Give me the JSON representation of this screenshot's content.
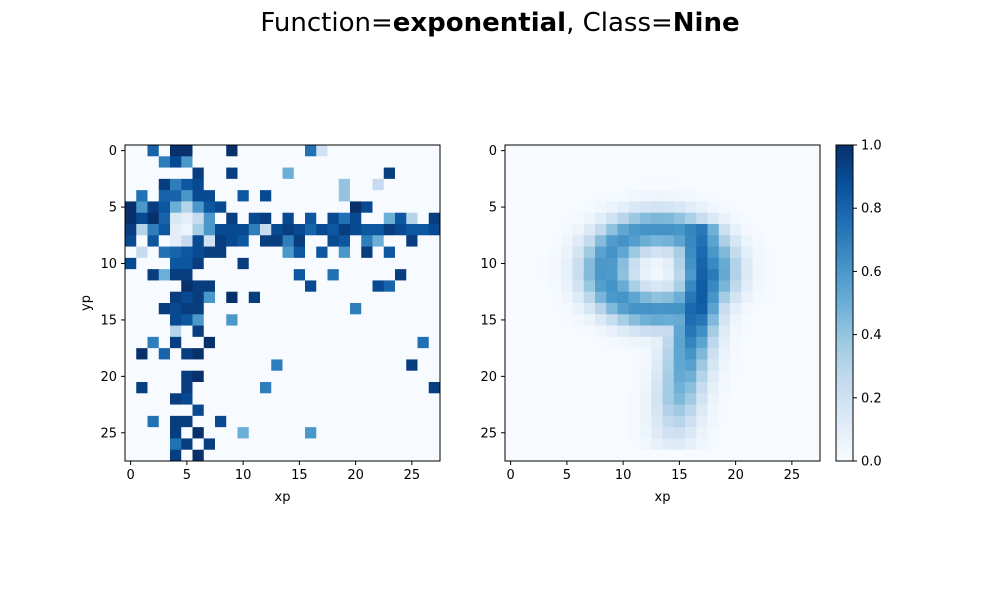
{
  "title": {
    "prefix": "Function=",
    "function": "exponential",
    "middle": ", Class=",
    "class": "Nine"
  },
  "chart_data": [
    {
      "type": "heatmap",
      "name": "attribution",
      "xlabel": "xp",
      "ylabel": "yp",
      "size": 28,
      "xticks": [
        0,
        5,
        10,
        15,
        20,
        25
      ],
      "yticks": [
        0,
        5,
        10,
        15,
        20,
        25
      ],
      "vmin": 0,
      "vmax": 1,
      "colormap": "Blues",
      "pixels": [
        [
          0,
          2,
          0.8
        ],
        [
          0,
          4,
          1
        ],
        [
          0,
          5,
          1
        ],
        [
          0,
          9,
          1
        ],
        [
          0,
          16,
          0.75
        ],
        [
          0,
          17,
          0.2
        ],
        [
          1,
          3,
          0.7
        ],
        [
          1,
          4,
          0.9
        ],
        [
          1,
          5,
          0.6
        ],
        [
          2,
          6,
          0.95
        ],
        [
          2,
          9,
          0.95
        ],
        [
          2,
          14,
          0.5
        ],
        [
          2,
          23,
          0.95
        ],
        [
          3,
          3,
          0.95
        ],
        [
          3,
          4,
          0.7
        ],
        [
          3,
          5,
          0.85
        ],
        [
          3,
          6,
          0.9
        ],
        [
          3,
          19,
          0.4
        ],
        [
          3,
          22,
          0.25
        ],
        [
          4,
          1,
          0.75
        ],
        [
          4,
          3,
          0.8
        ],
        [
          4,
          4,
          0.8
        ],
        [
          4,
          5,
          0.6
        ],
        [
          4,
          6,
          0.9
        ],
        [
          4,
          7,
          0.9
        ],
        [
          4,
          10,
          0.85
        ],
        [
          4,
          12,
          0.9
        ],
        [
          4,
          19,
          0.4
        ],
        [
          5,
          0,
          1
        ],
        [
          5,
          1,
          0.6
        ],
        [
          5,
          2,
          0.95
        ],
        [
          5,
          3,
          0.85
        ],
        [
          5,
          4,
          0.5
        ],
        [
          5,
          5,
          0.3
        ],
        [
          5,
          6,
          0.6
        ],
        [
          5,
          7,
          0.85
        ],
        [
          5,
          8,
          0.9
        ],
        [
          5,
          20,
          1
        ],
        [
          5,
          21,
          0.9
        ],
        [
          6,
          0,
          1
        ],
        [
          6,
          1,
          0.9
        ],
        [
          6,
          2,
          1
        ],
        [
          6,
          3,
          0.8
        ],
        [
          6,
          4,
          0.15
        ],
        [
          6,
          5,
          0.1
        ],
        [
          6,
          6,
          0.25
        ],
        [
          6,
          7,
          0.6
        ],
        [
          6,
          9,
          0.95
        ],
        [
          6,
          11,
          0.9
        ],
        [
          6,
          12,
          0.95
        ],
        [
          6,
          14,
          0.9
        ],
        [
          6,
          16,
          0.85
        ],
        [
          6,
          18,
          0.9
        ],
        [
          6,
          19,
          0.75
        ],
        [
          6,
          20,
          0.9
        ],
        [
          6,
          23,
          0.5
        ],
        [
          6,
          24,
          0.85
        ],
        [
          6,
          25,
          0.3
        ],
        [
          6,
          27,
          0.95
        ],
        [
          7,
          0,
          0.95
        ],
        [
          7,
          1,
          0.3
        ],
        [
          7,
          2,
          0.7
        ],
        [
          7,
          3,
          0.85
        ],
        [
          7,
          4,
          0.1
        ],
        [
          7,
          5,
          0.05
        ],
        [
          7,
          6,
          0.35
        ],
        [
          7,
          7,
          0.6
        ],
        [
          7,
          8,
          0.9
        ],
        [
          7,
          9,
          0.9
        ],
        [
          7,
          10,
          0.9
        ],
        [
          7,
          11,
          0.7
        ],
        [
          7,
          12,
          0.25
        ],
        [
          7,
          13,
          0.9
        ],
        [
          7,
          14,
          0.95
        ],
        [
          7,
          15,
          0.9
        ],
        [
          7,
          16,
          0.8
        ],
        [
          7,
          17,
          0.9
        ],
        [
          7,
          18,
          0.85
        ],
        [
          7,
          19,
          0.95
        ],
        [
          7,
          20,
          0.9
        ],
        [
          7,
          21,
          0.85
        ],
        [
          7,
          22,
          0.85
        ],
        [
          7,
          23,
          0.95
        ],
        [
          7,
          24,
          0.9
        ],
        [
          7,
          25,
          0.85
        ],
        [
          7,
          26,
          0.85
        ],
        [
          7,
          27,
          0.9
        ],
        [
          8,
          0,
          0.9
        ],
        [
          8,
          2,
          0.85
        ],
        [
          8,
          4,
          0.1
        ],
        [
          8,
          5,
          0.25
        ],
        [
          8,
          6,
          0.9
        ],
        [
          8,
          7,
          0.2
        ],
        [
          8,
          8,
          0.95
        ],
        [
          8,
          9,
          0.9
        ],
        [
          8,
          10,
          0.85
        ],
        [
          8,
          12,
          0.95
        ],
        [
          8,
          13,
          0.95
        ],
        [
          8,
          14,
          0.7
        ],
        [
          8,
          15,
          0.95
        ],
        [
          8,
          18,
          0.9
        ],
        [
          8,
          19,
          0.85
        ],
        [
          8,
          21,
          0.7
        ],
        [
          8,
          22,
          0.5
        ],
        [
          8,
          25,
          0.95
        ],
        [
          9,
          1,
          0.25
        ],
        [
          9,
          3,
          0.75
        ],
        [
          9,
          4,
          0.8
        ],
        [
          9,
          5,
          0.85
        ],
        [
          9,
          6,
          0.9
        ],
        [
          9,
          7,
          0.95
        ],
        [
          9,
          8,
          0.95
        ],
        [
          9,
          14,
          0.6
        ],
        [
          9,
          15,
          0.85
        ],
        [
          9,
          17,
          0.85
        ],
        [
          9,
          19,
          0.6
        ],
        [
          9,
          21,
          0.95
        ],
        [
          9,
          23,
          0.85
        ],
        [
          10,
          0,
          0.9
        ],
        [
          10,
          4,
          0.85
        ],
        [
          10,
          5,
          0.85
        ],
        [
          10,
          6,
          0.95
        ],
        [
          10,
          10,
          0.95
        ],
        [
          11,
          2,
          0.95
        ],
        [
          11,
          3,
          0.5
        ],
        [
          11,
          4,
          0.95
        ],
        [
          11,
          5,
          0.95
        ],
        [
          11,
          15,
          0.85
        ],
        [
          11,
          18,
          0.75
        ],
        [
          11,
          24,
          0.95
        ],
        [
          12,
          5,
          1
        ],
        [
          12,
          6,
          0.95
        ],
        [
          12,
          7,
          0.95
        ],
        [
          12,
          16,
          0.9
        ],
        [
          12,
          22,
          0.9
        ],
        [
          12,
          23,
          0.8
        ],
        [
          13,
          4,
          0.95
        ],
        [
          13,
          5,
          0.9
        ],
        [
          13,
          6,
          0.95
        ],
        [
          13,
          7,
          0.6
        ],
        [
          13,
          9,
          1
        ],
        [
          13,
          11,
          0.95
        ],
        [
          14,
          3,
          0.95
        ],
        [
          14,
          4,
          0.9
        ],
        [
          14,
          5,
          0.95
        ],
        [
          14,
          6,
          0.95
        ],
        [
          14,
          20,
          0.7
        ],
        [
          15,
          4,
          0.9
        ],
        [
          15,
          5,
          0.85
        ],
        [
          15,
          6,
          0.6
        ],
        [
          15,
          9,
          0.6
        ],
        [
          16,
          4,
          0.3
        ],
        [
          16,
          6,
          0.95
        ],
        [
          17,
          2,
          0.7
        ],
        [
          17,
          4,
          0.95
        ],
        [
          17,
          7,
          1
        ],
        [
          17,
          26,
          0.75
        ],
        [
          18,
          1,
          1
        ],
        [
          18,
          3,
          0.8
        ],
        [
          18,
          5,
          0.95
        ],
        [
          18,
          6,
          1
        ],
        [
          19,
          13,
          0.7
        ],
        [
          19,
          25,
          0.95
        ],
        [
          20,
          5,
          0.95
        ],
        [
          20,
          6,
          1
        ],
        [
          21,
          1,
          0.95
        ],
        [
          21,
          5,
          0.95
        ],
        [
          21,
          12,
          0.7
        ],
        [
          21,
          27,
          0.95
        ],
        [
          22,
          4,
          0.95
        ],
        [
          22,
          5,
          0.9
        ],
        [
          23,
          6,
          0.9
        ],
        [
          24,
          2,
          0.75
        ],
        [
          24,
          4,
          0.95
        ],
        [
          24,
          5,
          0.95
        ],
        [
          24,
          8,
          0.9
        ],
        [
          25,
          4,
          0.95
        ],
        [
          25,
          6,
          1
        ],
        [
          25,
          10,
          0.5
        ],
        [
          25,
          16,
          0.6
        ],
        [
          26,
          4,
          0.75
        ],
        [
          26,
          5,
          0.95
        ],
        [
          26,
          7,
          0.95
        ],
        [
          27,
          4,
          0.95
        ],
        [
          27,
          6,
          1
        ]
      ]
    },
    {
      "type": "heatmap",
      "name": "mean-digit",
      "xlabel": "xp",
      "ylabel": "",
      "size": 28,
      "xticks": [
        0,
        5,
        10,
        15,
        20,
        25
      ],
      "yticks": [
        0,
        5,
        10,
        15,
        20,
        25
      ],
      "vmin": 0,
      "vmax": 1,
      "colormap": "Blues",
      "shape": {
        "ring": {
          "cx": 13.2,
          "cy": 10.6,
          "rx": 4.8,
          "ry": 3.6,
          "width": 1.3,
          "peak": 0.62
        },
        "stem": [
          {
            "y": 6,
            "x": 16.5,
            "peak": 0.72
          },
          {
            "y": 11,
            "x": 17.2,
            "peak": 0.82
          },
          {
            "y": 14,
            "x": 16.6,
            "peak": 0.85
          },
          {
            "y": 18,
            "x": 15.8,
            "peak": 0.62
          },
          {
            "y": 22,
            "x": 15.0,
            "peak": 0.45
          },
          {
            "y": 25,
            "x": 14.6,
            "peak": 0.22
          }
        ],
        "stem_width": 1.5
      }
    }
  ],
  "colorbar": {
    "ticks": [
      "0.0",
      "0.2",
      "0.4",
      "0.6",
      "0.8",
      "1.0"
    ],
    "values": [
      0,
      0.2,
      0.4,
      0.6,
      0.8,
      1.0
    ]
  },
  "colors": {
    "low": "#f7fbff",
    "high": "#08306b"
  }
}
